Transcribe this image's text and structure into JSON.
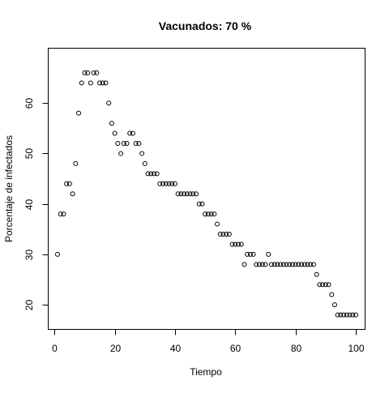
{
  "chart_data": {
    "type": "scatter",
    "title": "Vacunados:  70 %",
    "xlabel": "Tiempo",
    "ylabel": "Porcentaje de infectados",
    "xlim": [
      -1.96,
      102.96
    ],
    "ylim": [
      15.2,
      70.8
    ],
    "xticks": [
      0,
      20,
      40,
      60,
      80,
      100
    ],
    "yticks": [
      20,
      30,
      40,
      50,
      60
    ],
    "grid": false,
    "legend": "none",
    "point_style": "open-circle",
    "series": [
      {
        "x": [
          1,
          2,
          3,
          4,
          5,
          6,
          7,
          8,
          9,
          10,
          11,
          12,
          13,
          14,
          15,
          16,
          17,
          18,
          19,
          20,
          21,
          22,
          23,
          24,
          25,
          26,
          27,
          28,
          29,
          30,
          31,
          32,
          33,
          34,
          35,
          36,
          37,
          38,
          39,
          40,
          41,
          42,
          43,
          44,
          45,
          46,
          47,
          48,
          49,
          50,
          51,
          52,
          53,
          54,
          55,
          56,
          57,
          58,
          59,
          60,
          61,
          62,
          63,
          64,
          65,
          66,
          67,
          68,
          69,
          70,
          71,
          72,
          73,
          74,
          75,
          76,
          77,
          78,
          79,
          80,
          81,
          82,
          83,
          84,
          85,
          86,
          87,
          88,
          89,
          90,
          91,
          92,
          93,
          94,
          95,
          96,
          97,
          98,
          99,
          100
        ],
        "y": [
          30,
          38,
          38,
          44,
          44,
          42,
          48,
          58,
          64,
          66,
          66,
          64,
          66,
          66,
          64,
          64,
          64,
          60,
          56,
          54,
          52,
          50,
          52,
          52,
          54,
          54,
          52,
          52,
          50,
          48,
          46,
          46,
          46,
          46,
          44,
          44,
          44,
          44,
          44,
          44,
          42,
          42,
          42,
          42,
          42,
          42,
          42,
          40,
          40,
          38,
          38,
          38,
          38,
          36,
          34,
          34,
          34,
          34,
          32,
          32,
          32,
          32,
          28,
          30,
          30,
          30,
          28,
          28,
          28,
          28,
          30,
          28,
          28,
          28,
          28,
          28,
          28,
          28,
          28,
          28,
          28,
          28,
          28,
          28,
          28,
          28,
          26,
          24,
          24,
          24,
          24,
          22,
          20,
          18,
          18,
          18,
          18,
          18,
          18,
          18
        ]
      }
    ]
  }
}
